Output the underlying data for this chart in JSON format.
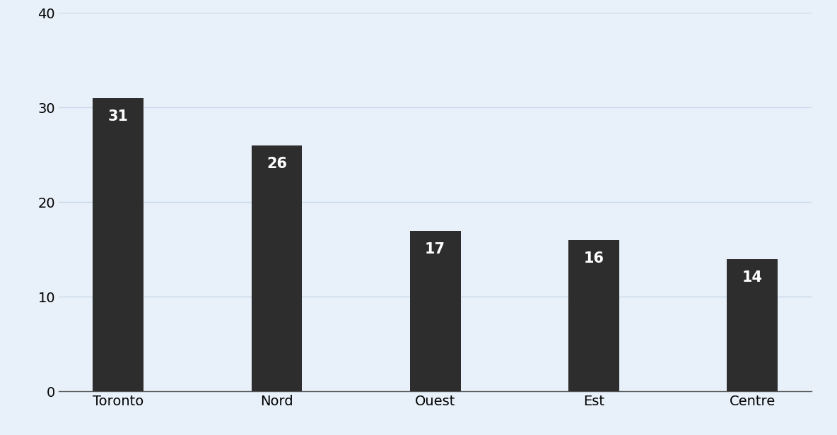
{
  "categories": [
    "Toronto",
    "Nord",
    "Ouest",
    "Est",
    "Centre"
  ],
  "values": [
    31,
    26,
    17,
    16,
    14
  ],
  "bar_color": "#2d2d2d",
  "label_color": "#ffffff",
  "background_color": "#e8f1fa",
  "ylim": [
    0,
    40
  ],
  "yticks": [
    0,
    10,
    20,
    30,
    40
  ],
  "label_fontsize": 15,
  "tick_fontsize": 14,
  "bar_width": 0.32,
  "label_fontweight": "bold",
  "grid_color": "#c8d8e8",
  "grid_linewidth": 1.0,
  "spine_color": "#555555"
}
